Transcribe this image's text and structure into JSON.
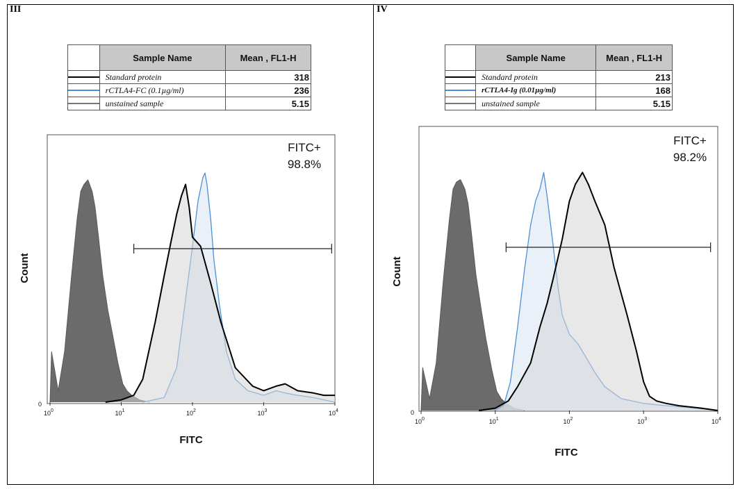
{
  "panels": [
    {
      "label": "III",
      "table": {
        "header_name": "Sample Name",
        "header_value": "Mean , FL1-H",
        "rows": [
          {
            "name": "Standard protein",
            "value": "318",
            "color": "#000000"
          },
          {
            "name": "rCTLA4-FC (0.1µg/ml)",
            "value": "236",
            "color": "#4a90d9"
          },
          {
            "name": "unstained sample",
            "value": "5.15",
            "color": "#777777"
          }
        ]
      },
      "gate_text_1": "FITC+",
      "gate_text_2": "98.8%",
      "xlabel": "FITC",
      "ylabel": "Count"
    },
    {
      "label": "IV",
      "table": {
        "header_name": "Sample Name",
        "header_value": "Mean , FL1-H",
        "rows": [
          {
            "name": "Standard protein",
            "value": "213",
            "color": "#000000"
          },
          {
            "name": "rCTLA4-Ig (0.01µg/ml)",
            "value": "168",
            "color": "#4a90d9"
          },
          {
            "name": "unstained sample",
            "value": "5.15",
            "color": "#777777"
          }
        ]
      },
      "gate_text_1": "FITC+",
      "gate_text_2": "98.2%",
      "xlabel": "FITC",
      "ylabel": "Count"
    }
  ],
  "chart_data": [
    {
      "type": "area",
      "title": "",
      "xlabel": "FITC",
      "ylabel": "Count",
      "xscale": "log",
      "xlim": [
        1,
        10000
      ],
      "ylim": [
        0,
        1.1
      ],
      "x_tick_labels": [
        "10^0",
        "10^1",
        "10^2",
        "10^3",
        "10^4"
      ],
      "y_tick_labels": [
        "0"
      ],
      "gate": {
        "x_start": 15,
        "x_end": 9000,
        "label": "FITC+ 98.8%"
      },
      "series": [
        {
          "name": "unstained sample",
          "style": "filled-dark",
          "x": [
            1.0,
            1.05,
            1.3,
            1.6,
            2.0,
            2.4,
            2.7,
            3.0,
            3.4,
            3.9,
            4.3,
            4.8,
            5.5,
            6.5,
            7.5,
            9.0,
            10.5,
            12,
            14,
            18,
            25
          ],
          "y": [
            0.0,
            0.22,
            0.05,
            0.22,
            0.55,
            0.8,
            0.92,
            0.95,
            0.97,
            0.92,
            0.85,
            0.72,
            0.55,
            0.4,
            0.3,
            0.17,
            0.08,
            0.05,
            0.03,
            0.01,
            0.0
          ]
        },
        {
          "name": "rCTLA4-FC (0.1µg/ml)",
          "style": "line-fill-light",
          "x": [
            20,
            40,
            60,
            80,
            100,
            120,
            140,
            150,
            160,
            180,
            200,
            240,
            300,
            400,
            600,
            1000,
            1500,
            2000,
            3000,
            5000,
            10000
          ],
          "y": [
            0.0,
            0.02,
            0.15,
            0.45,
            0.68,
            0.88,
            0.98,
            1.0,
            0.95,
            0.8,
            0.62,
            0.42,
            0.22,
            0.1,
            0.05,
            0.03,
            0.05,
            0.04,
            0.03,
            0.02,
            0.0
          ]
        },
        {
          "name": "Standard protein",
          "style": "line-fill-light",
          "x": [
            6,
            10,
            15,
            20,
            30,
            40,
            50,
            60,
            70,
            80,
            90,
            100,
            130,
            180,
            250,
            400,
            700,
            1000,
            1500,
            2000,
            3000,
            5000,
            7000,
            10000
          ],
          "y": [
            0.0,
            0.01,
            0.03,
            0.1,
            0.35,
            0.55,
            0.7,
            0.82,
            0.9,
            0.95,
            0.85,
            0.72,
            0.68,
            0.52,
            0.35,
            0.15,
            0.07,
            0.05,
            0.07,
            0.08,
            0.05,
            0.04,
            0.03,
            0.03
          ]
        }
      ]
    },
    {
      "type": "area",
      "title": "",
      "xlabel": "FITC",
      "ylabel": "Count",
      "xscale": "log",
      "xlim": [
        1,
        10000
      ],
      "ylim": [
        0,
        1.1
      ],
      "x_tick_labels": [
        "10^0",
        "10^1",
        "10^2",
        "10^3",
        "10^4"
      ],
      "y_tick_labels": [
        "0"
      ],
      "gate": {
        "x_start": 14,
        "x_end": 8000,
        "label": "FITC+ 98.2%"
      },
      "series": [
        {
          "name": "unstained sample",
          "style": "filled-dark",
          "x": [
            1.0,
            1.05,
            1.3,
            1.6,
            2.0,
            2.4,
            2.7,
            3.0,
            3.4,
            3.9,
            4.3,
            4.8,
            5.5,
            6.5,
            7.5,
            9.0,
            10.5,
            12,
            14,
            18,
            25
          ],
          "y": [
            0.0,
            0.18,
            0.05,
            0.2,
            0.55,
            0.8,
            0.93,
            0.96,
            0.97,
            0.93,
            0.87,
            0.74,
            0.57,
            0.42,
            0.3,
            0.17,
            0.08,
            0.05,
            0.03,
            0.01,
            0.0
          ]
        },
        {
          "name": "rCTLA4-Ig (0.01µg/ml)",
          "style": "line-fill-light",
          "x": [
            10,
            13,
            16,
            20,
            25,
            30,
            35,
            40,
            45,
            50,
            60,
            70,
            80,
            100,
            130,
            170,
            220,
            300,
            500,
            1000,
            2000,
            5000,
            10000
          ],
          "y": [
            0.0,
            0.02,
            0.12,
            0.35,
            0.6,
            0.78,
            0.88,
            0.93,
            1.0,
            0.9,
            0.7,
            0.52,
            0.4,
            0.32,
            0.28,
            0.22,
            0.16,
            0.1,
            0.05,
            0.03,
            0.02,
            0.01,
            0.0
          ]
        },
        {
          "name": "Standard protein",
          "style": "line-fill-light",
          "x": [
            6,
            10,
            15,
            20,
            30,
            40,
            50,
            60,
            80,
            100,
            120,
            150,
            180,
            220,
            300,
            400,
            600,
            800,
            1000,
            1200,
            1500,
            2000,
            3000,
            6000,
            10000
          ],
          "y": [
            0.0,
            0.01,
            0.04,
            0.1,
            0.2,
            0.35,
            0.45,
            0.55,
            0.72,
            0.88,
            0.95,
            1.0,
            0.95,
            0.88,
            0.78,
            0.6,
            0.4,
            0.25,
            0.12,
            0.06,
            0.04,
            0.03,
            0.02,
            0.01,
            0.0
          ]
        }
      ]
    }
  ]
}
